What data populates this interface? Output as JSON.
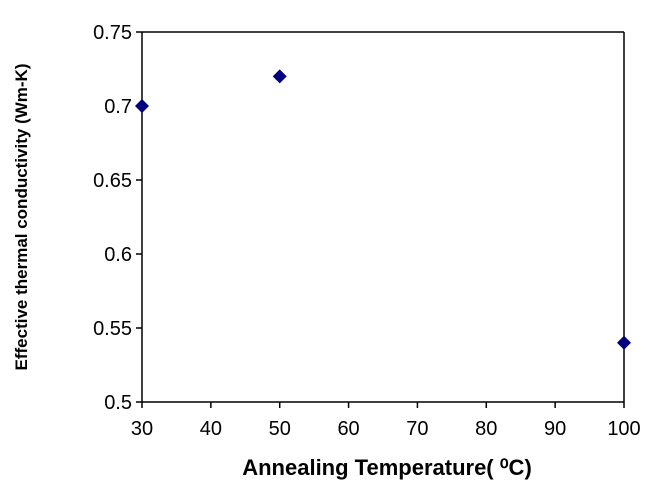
{
  "chart_data": {
    "type": "scatter",
    "title": "",
    "xlabel": "Annealing Temperature( ⁰C)",
    "ylabel": "Effective thermal conductivity (Wm-K)",
    "xlim": [
      30,
      100
    ],
    "ylim": [
      0.5,
      0.75
    ],
    "x_ticks": [
      "30",
      "40",
      "50",
      "60",
      "70",
      "80",
      "90",
      "100"
    ],
    "y_ticks": [
      "0.75",
      "0.7",
      "0.65",
      "0.6",
      "0.55",
      "0.5"
    ],
    "grid": false,
    "legend": "none",
    "marker": "diamond",
    "colors": {
      "marker": "#000080",
      "axis": "#000000"
    },
    "series": [
      {
        "x": [
          30,
          50,
          100
        ],
        "y": [
          0.7,
          0.72,
          0.54
        ]
      }
    ]
  }
}
